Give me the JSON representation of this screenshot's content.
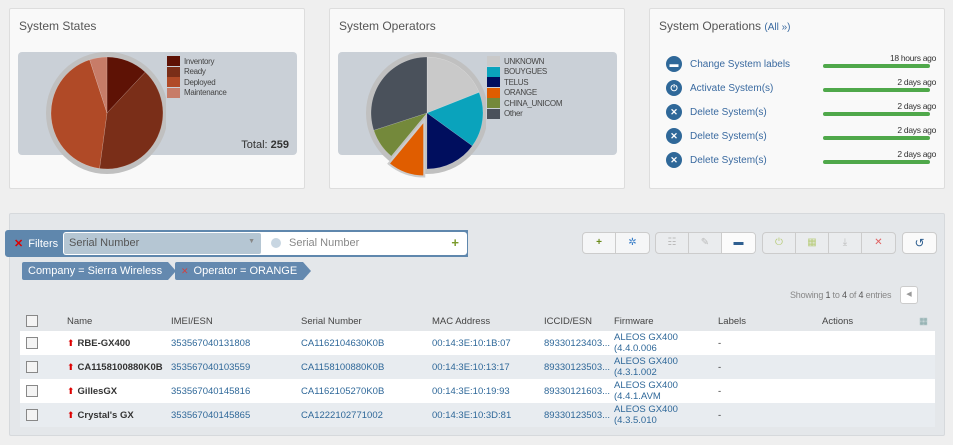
{
  "states": {
    "title": "System States",
    "total_label": "Total:",
    "total": "259",
    "chart_data": {
      "type": "pie",
      "series": [
        {
          "name": "Inventory",
          "value": 31,
          "color": "#5e1205"
        },
        {
          "name": "Ready",
          "value": 104,
          "color": "#7a2e18"
        },
        {
          "name": "Deployed",
          "value": 111,
          "color": "#b04a27"
        },
        {
          "name": "Maintenance",
          "value": 13,
          "color": "#c77c68"
        }
      ]
    }
  },
  "operators": {
    "title": "System Operators",
    "chart_data": {
      "type": "pie",
      "series": [
        {
          "name": "UNKNOWN",
          "value": 19,
          "color": "#c9c9c9"
        },
        {
          "name": "BOUYGUES",
          "value": 16,
          "color": "#0aa3bc"
        },
        {
          "name": "TELUS",
          "value": 15,
          "color": "#000e5e"
        },
        {
          "name": "ORANGE",
          "value": 11,
          "color": "#e05d00",
          "exploded": true
        },
        {
          "name": "CHINA_UNICOM",
          "value": 9,
          "color": "#74893b"
        },
        {
          "name": "Other",
          "value": 30,
          "color": "#4a515b"
        }
      ]
    }
  },
  "operations": {
    "title": "System Operations",
    "all_link": "(All »)",
    "items": [
      {
        "icon": "tag-icon",
        "glyph": "▬",
        "label": "Change System labels",
        "time": "18 hours ago",
        "progress": 100
      },
      {
        "icon": "power-icon",
        "glyph": "⏻",
        "label": "Activate System(s)",
        "time": "2 days ago",
        "progress": 100
      },
      {
        "icon": "close-icon",
        "glyph": "✕",
        "label": "Delete System(s)",
        "time": "2 days ago",
        "progress": 100
      },
      {
        "icon": "close-icon",
        "glyph": "✕",
        "label": "Delete System(s)",
        "time": "2 days ago",
        "progress": 100
      },
      {
        "icon": "close-icon",
        "glyph": "✕",
        "label": "Delete System(s)",
        "time": "2 days ago",
        "progress": 100
      }
    ]
  },
  "filters": {
    "label": "Filters",
    "field": "Serial Number",
    "placeholder": "Serial Number",
    "chips": [
      "Company = Sierra Wireless",
      "Operator = ORANGE"
    ]
  },
  "pagination": {
    "prefix": "Showing",
    "from": "1",
    "to": "4",
    "of": "4",
    "suffix": "entries"
  },
  "table": {
    "columns": [
      "Name",
      "IMEI/ESN",
      "Serial Number",
      "MAC Address",
      "ICCID/ESN",
      "Firmware",
      "Labels",
      "Actions"
    ],
    "rows": [
      [
        "RBE-GX400",
        "353567040131808",
        "CA1162104630K0B",
        "00:14:3E:10:1B:07",
        "89330123403...",
        "ALEOS GX400 (4.4.0.006",
        "-"
      ],
      [
        "CA1158100880K0B",
        "353567040103559",
        "CA1158100880K0B",
        "00:14:3E:10:13:17",
        "89330123503...",
        "ALEOS GX400 (4.3.1.002",
        "-"
      ],
      [
        "GillesGX",
        "353567040145816",
        "CA1162105270K0B",
        "00:14:3E:10:19:93",
        "89330121603...",
        "ALEOS GX400 (4.4.1.AVM",
        "-"
      ],
      [
        "Crystal's GX",
        "353567040145865",
        "CA1222102771002",
        "00:14:3E:10:3D:81",
        "89330123503...",
        "ALEOS GX400 (4.3.5.010",
        "-"
      ]
    ]
  }
}
